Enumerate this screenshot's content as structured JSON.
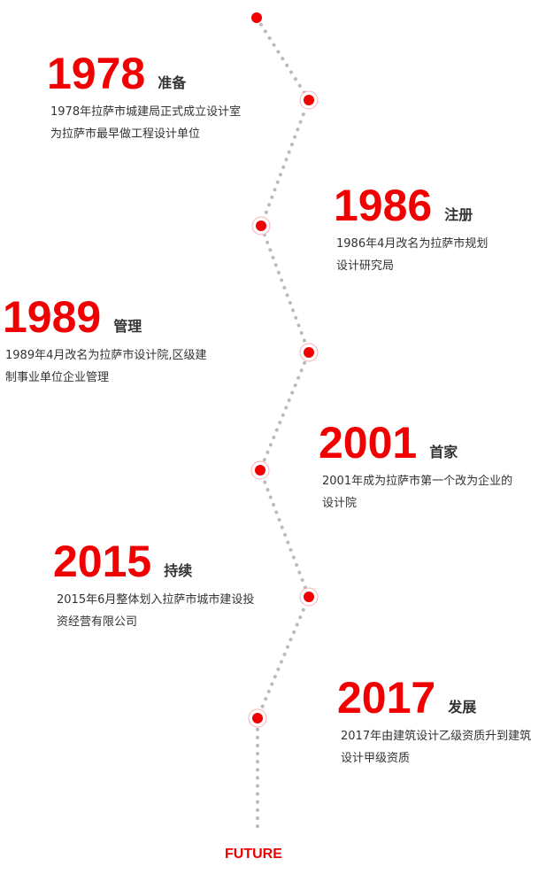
{
  "timeline": {
    "accent_color": "#f00000",
    "line_color": "#bbbbbb",
    "entries": [
      {
        "year": "1978",
        "label": "准备",
        "lines": [
          "1978年拉萨市城建局正式成立设计室",
          "为拉萨市最早做工程设计单位"
        ]
      },
      {
        "year": "1986",
        "label": "注册",
        "lines": [
          "1986年4月改名为拉萨市规划",
          "设计研究局"
        ]
      },
      {
        "year": "1989",
        "label": "管理",
        "lines": [
          "1989年4月改名为拉萨市设计院,区级建",
          "制事业单位企业管理"
        ]
      },
      {
        "year": "2001",
        "label": "首家",
        "lines": [
          "2001年成为拉萨市第一个改为企业的",
          "设计院"
        ]
      },
      {
        "year": "2015",
        "label": "持续",
        "lines": [
          "2015年6月整体划入拉萨市城市建设投",
          "资经营有限公司"
        ]
      },
      {
        "year": "2017",
        "label": "发展",
        "lines": [
          "2017年由建筑设计乙级资质升到建筑",
          "设计甲级资质"
        ]
      }
    ],
    "end_label": "FUTURE"
  }
}
